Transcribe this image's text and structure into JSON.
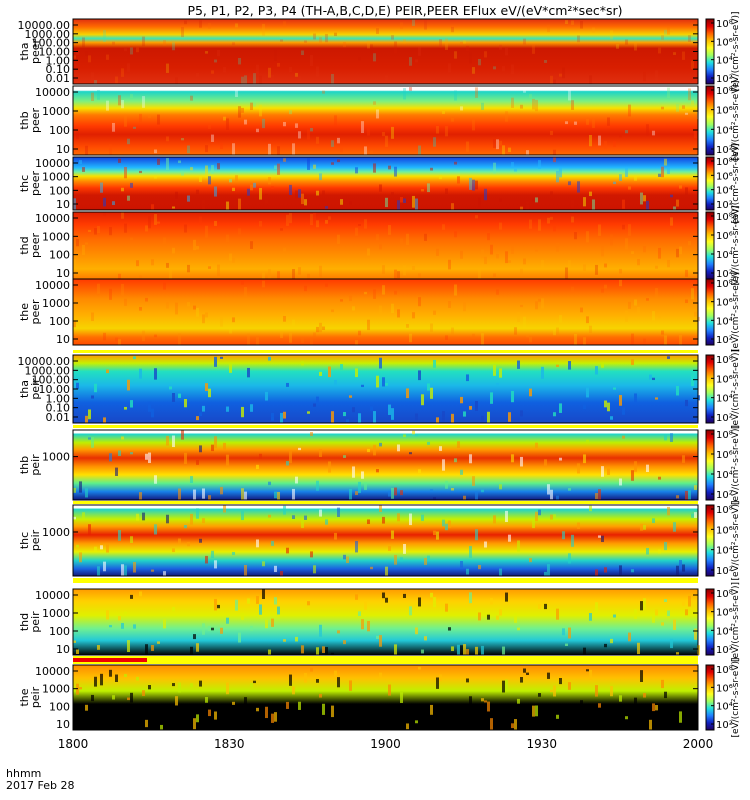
{
  "chart_data": {
    "type": "heatmap",
    "title": "P5, P1, P2, P3, P4 (TH-A,B,C,D,E) PEIR,PEER EFlux eV/(eV*cm²*sec*sr)",
    "x_ticks": [
      "1800",
      "1830",
      "1900",
      "1930",
      "2000"
    ],
    "x_label": "hhmm",
    "date_label": "2017 Feb 28",
    "colorbar_ticks": [
      "10⁸",
      "10⁶",
      "10⁴",
      "10²"
    ],
    "colorbar_label": "[eV/(cm²-s-sr-eV)]",
    "panels": [
      {
        "name": "tha-peer",
        "ylabel": [
          "tha",
          "peer"
        ],
        "yticks": [
          "10000.00",
          "1000.00",
          "100.00",
          "10.00",
          "1.00",
          "0.10",
          "0.01"
        ],
        "bands": [
          {
            "f": 0.0,
            "c": "#e03010"
          },
          {
            "f": 0.12,
            "c": "#ff6a00"
          },
          {
            "f": 0.24,
            "c": "#f7d400"
          },
          {
            "f": 0.3,
            "c": "#3be5b8"
          },
          {
            "f": 0.36,
            "c": "#ffa200"
          },
          {
            "f": 0.45,
            "c": "#cc1800"
          },
          {
            "f": 0.75,
            "c": "#d81e00"
          },
          {
            "f": 1.0,
            "c": "#e03010"
          }
        ],
        "noise": 0.25
      },
      {
        "name": "thb-peer",
        "ylabel": [
          "thb",
          "peer"
        ],
        "yticks": [
          "10000",
          "1000",
          "100",
          "10"
        ],
        "bands": [
          {
            "f": 0.0,
            "c": "#ffffff"
          },
          {
            "f": 0.06,
            "c": "#ffffff"
          },
          {
            "f": 0.08,
            "c": "#1bd4c8"
          },
          {
            "f": 0.22,
            "c": "#7df080"
          },
          {
            "f": 0.32,
            "c": "#f7e200"
          },
          {
            "f": 0.42,
            "c": "#ff7a00"
          },
          {
            "f": 0.58,
            "c": "#ff3a00"
          },
          {
            "f": 0.7,
            "c": "#e02000"
          },
          {
            "f": 0.88,
            "c": "#ff4a00"
          },
          {
            "f": 1.0,
            "c": "#ff6a00"
          }
        ],
        "noise": 0.35
      },
      {
        "name": "thc-peer",
        "ylabel": [
          "thc",
          "peer"
        ],
        "yticks": [
          "10000",
          "1000",
          "100",
          "10"
        ],
        "bands": [
          {
            "f": 0.0,
            "c": "#1040e0"
          },
          {
            "f": 0.2,
            "c": "#22b8ff"
          },
          {
            "f": 0.28,
            "c": "#6ff0a0"
          },
          {
            "f": 0.36,
            "c": "#f7e200"
          },
          {
            "f": 0.46,
            "c": "#ff8a00"
          },
          {
            "f": 0.58,
            "c": "#ff3a00"
          },
          {
            "f": 0.72,
            "c": "#d01800"
          },
          {
            "f": 1.0,
            "c": "#cc1400"
          }
        ],
        "noise": 0.5
      },
      {
        "name": "thd-peer",
        "ylabel": [
          "thd",
          "peer"
        ],
        "yticks": [
          "10000",
          "1000",
          "100",
          "10"
        ],
        "bands": [
          {
            "f": 0.0,
            "c": "#e02000"
          },
          {
            "f": 0.18,
            "c": "#ff3a00"
          },
          {
            "f": 0.4,
            "c": "#ff6a00"
          },
          {
            "f": 0.65,
            "c": "#ff9000"
          },
          {
            "f": 0.85,
            "c": "#ffb000"
          },
          {
            "f": 1.0,
            "c": "#ff7a00"
          }
        ],
        "noise": 0.3
      },
      {
        "name": "the-peer",
        "ylabel": [
          "the",
          "peer"
        ],
        "yticks": [
          "10000",
          "1000",
          "100",
          "10"
        ],
        "bands": [
          {
            "f": 0.0,
            "c": "#ff3a00"
          },
          {
            "f": 0.3,
            "c": "#ff8a00"
          },
          {
            "f": 0.55,
            "c": "#ffb000"
          },
          {
            "f": 0.75,
            "c": "#f7d400"
          },
          {
            "f": 0.88,
            "c": "#ff7000"
          },
          {
            "f": 1.0,
            "c": "#ff4a00"
          }
        ],
        "noise": 0.3
      },
      {
        "name": "tha-peir",
        "ylabel": [
          "tha",
          "peir"
        ],
        "yticks": [
          "10000.00",
          "1000.00",
          "100.00",
          "10.00",
          "1.00",
          "0.10",
          "0.01"
        ],
        "bands": [
          {
            "f": 0.0,
            "c": "#ff9a00"
          },
          {
            "f": 0.12,
            "c": "#c8f000"
          },
          {
            "f": 0.24,
            "c": "#22e0c0"
          },
          {
            "f": 0.45,
            "c": "#1bb8e8"
          },
          {
            "f": 0.7,
            "c": "#1060e0"
          },
          {
            "f": 1.0,
            "c": "#1848c8"
          }
        ],
        "noise": 0.8
      },
      {
        "name": "thb-peir",
        "ylabel": [
          "thb",
          "peir"
        ],
        "yticks": [
          "1000"
        ],
        "bands": [
          {
            "f": 0.0,
            "c": "#ffffff"
          },
          {
            "f": 0.04,
            "c": "#ffffff"
          },
          {
            "f": 0.06,
            "c": "#22d4c8"
          },
          {
            "f": 0.18,
            "c": "#c0f000"
          },
          {
            "f": 0.28,
            "c": "#ff9a00"
          },
          {
            "f": 0.4,
            "c": "#e83000"
          },
          {
            "f": 0.52,
            "c": "#ff9000"
          },
          {
            "f": 0.64,
            "c": "#ffe000"
          },
          {
            "f": 0.76,
            "c": "#5ef08a"
          },
          {
            "f": 0.88,
            "c": "#1880e8"
          },
          {
            "f": 1.0,
            "c": "#121a80"
          }
        ],
        "noise": 0.6
      },
      {
        "name": "thc-peir",
        "ylabel": [
          "thc",
          "peir"
        ],
        "yticks": [
          "1000"
        ],
        "bands": [
          {
            "f": 0.0,
            "c": "#ffffff"
          },
          {
            "f": 0.04,
            "c": "#ffffff"
          },
          {
            "f": 0.06,
            "c": "#22d4c8"
          },
          {
            "f": 0.2,
            "c": "#c8f000"
          },
          {
            "f": 0.3,
            "c": "#ffa000"
          },
          {
            "f": 0.42,
            "c": "#e82000"
          },
          {
            "f": 0.54,
            "c": "#ff9a00"
          },
          {
            "f": 0.66,
            "c": "#e8f000"
          },
          {
            "f": 0.78,
            "c": "#22d4c8"
          },
          {
            "f": 0.9,
            "c": "#1a60e0"
          },
          {
            "f": 1.0,
            "c": "#141a78"
          }
        ],
        "noise": 0.6
      },
      {
        "name": "thd-peir",
        "ylabel": [
          "thd",
          "peir"
        ],
        "yticks": [
          "10000",
          "1000",
          "100",
          "10"
        ],
        "bands": [
          {
            "f": 0.0,
            "c": "#ff9a00"
          },
          {
            "f": 0.18,
            "c": "#ffd000"
          },
          {
            "f": 0.4,
            "c": "#e0f000"
          },
          {
            "f": 0.6,
            "c": "#70f090"
          },
          {
            "f": 0.78,
            "c": "#22c8d8"
          },
          {
            "f": 1.0,
            "c": "#000000"
          }
        ],
        "noise": 0.7
      },
      {
        "name": "the-peir",
        "ylabel": [
          "the",
          "peir"
        ],
        "yticks": [
          "10000",
          "1000",
          "100",
          "10"
        ],
        "bands": [
          {
            "f": 0.0,
            "c": "#ff8a00"
          },
          {
            "f": 0.2,
            "c": "#ffc000"
          },
          {
            "f": 0.4,
            "c": "#c0f000"
          },
          {
            "f": 0.6,
            "c": "#000000"
          },
          {
            "f": 1.0,
            "c": "#000000"
          }
        ],
        "noise": 0.7
      }
    ]
  },
  "colors": {
    "frame": "#000000",
    "status_bar_yellow": "#ffff00",
    "status_bar_red": "#ee0000",
    "colormap": [
      "#8a0000",
      "#e00000",
      "#ff6000",
      "#ffc000",
      "#ffff20",
      "#a0ff60",
      "#20e0e0",
      "#2080ff",
      "#1020c0",
      "#200060"
    ]
  }
}
